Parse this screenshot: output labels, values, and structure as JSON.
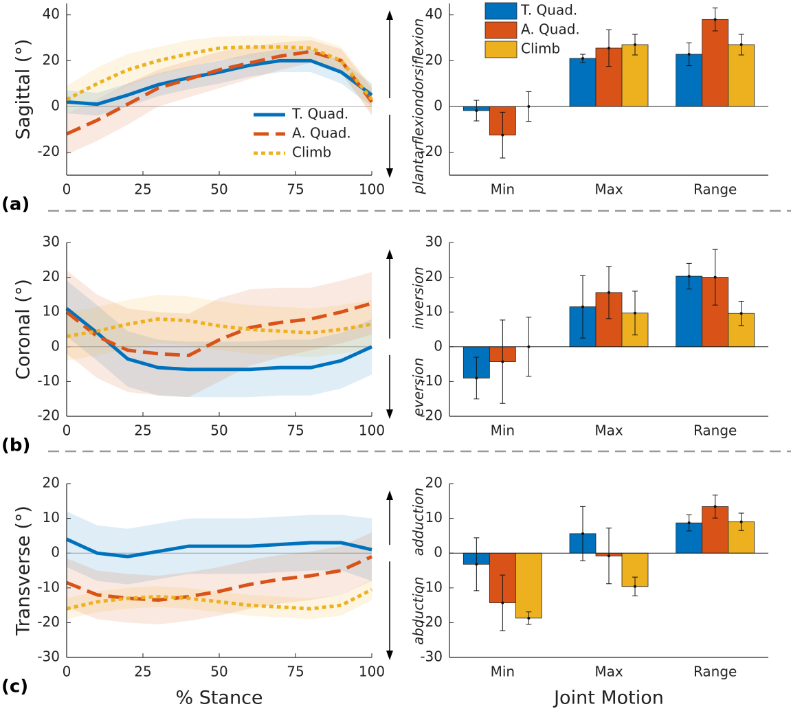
{
  "chart_data": [
    {
      "type": "line",
      "panel_label": "(a)",
      "y_label": "Sagittal (°)",
      "direction_up": "dorsiflexion",
      "direction_down": "plantarflexion",
      "x": [
        0,
        10,
        20,
        30,
        40,
        50,
        60,
        70,
        80,
        90,
        100
      ],
      "xlim": [
        0,
        100
      ],
      "xticks": [
        0,
        25,
        50,
        75,
        100
      ],
      "ylim": [
        -30,
        45
      ],
      "yticks": [
        -20,
        0,
        20,
        40
      ],
      "legend": "lower right",
      "series": [
        {
          "name": "T. Quad.",
          "color": "#0072BD",
          "style": "solid",
          "values": [
            2,
            1,
            5,
            9.5,
            12.5,
            15,
            18,
            20,
            20,
            15,
            5
          ],
          "sd": [
            5,
            5,
            5,
            5,
            5,
            5,
            5,
            5,
            5,
            5,
            5
          ]
        },
        {
          "name": "A. Quad.",
          "color": "#D95319",
          "style": "dashed",
          "values": [
            -12,
            -6,
            1,
            8,
            12,
            16,
            19,
            22,
            24,
            20,
            2
          ],
          "sd": [
            9,
            9,
            9,
            8,
            8,
            8,
            7,
            6,
            5,
            5,
            6
          ]
        },
        {
          "name": "Climb",
          "color": "#EDB120",
          "style": "dotted",
          "values": [
            3,
            10,
            16,
            20,
            23,
            25.5,
            26,
            26,
            25.5,
            20,
            3
          ],
          "sd": [
            6,
            7,
            7,
            6,
            6,
            5,
            5,
            5,
            5,
            6,
            6
          ]
        }
      ]
    },
    {
      "type": "bar",
      "categories": [
        "Min",
        "Max",
        "Range"
      ],
      "ylim": [
        -30,
        45
      ],
      "yticks": [
        -20,
        0,
        20,
        40
      ],
      "legend": "upper left",
      "series": [
        {
          "name": "T. Quad.",
          "color": "#0072BD",
          "values": [
            -1.8,
            21,
            22.8
          ],
          "errors": [
            4.5,
            1.8,
            5
          ]
        },
        {
          "name": "A. Quad.",
          "color": "#D95319",
          "values": [
            -12.5,
            25.5,
            38
          ],
          "errors": [
            10,
            8,
            5
          ]
        },
        {
          "name": "Climb",
          "color": "#EDB120",
          "values": [
            0,
            27,
            27
          ],
          "errors": [
            6.5,
            4.5,
            4.5
          ]
        }
      ]
    },
    {
      "type": "line",
      "panel_label": "(b)",
      "y_label": "Coronal (°)",
      "direction_up": "inversion",
      "direction_down": "eversion",
      "x": [
        0,
        10,
        20,
        30,
        40,
        50,
        60,
        70,
        80,
        90,
        100
      ],
      "xlim": [
        0,
        100
      ],
      "xticks": [
        0,
        25,
        50,
        75,
        100
      ],
      "ylim": [
        -20,
        30
      ],
      "yticks": [
        -20,
        -10,
        0,
        10,
        20,
        30
      ],
      "series": [
        {
          "color": "#0072BD",
          "style": "solid",
          "values": [
            11,
            4,
            -3.5,
            -6,
            -6.5,
            -6.5,
            -6.5,
            -6,
            -6,
            -4,
            0
          ],
          "sd": [
            8,
            8,
            8,
            8,
            8,
            8,
            8,
            8,
            8,
            8,
            8
          ]
        },
        {
          "color": "#D95319",
          "style": "dashed",
          "values": [
            10,
            3,
            -1,
            -2,
            -2.5,
            2,
            5.5,
            7,
            8,
            10,
            12.5
          ],
          "sd": [
            12,
            12,
            12,
            12,
            12,
            12,
            11,
            10,
            9,
            9,
            9
          ]
        },
        {
          "color": "#EDB120",
          "style": "dotted",
          "values": [
            3,
            4.5,
            6.5,
            8,
            7.5,
            6,
            5,
            4.5,
            4,
            5,
            6.5
          ],
          "sd": [
            7,
            7,
            7,
            7,
            7,
            7,
            7,
            7,
            7,
            7,
            7
          ]
        }
      ]
    },
    {
      "type": "bar",
      "categories": [
        "Min",
        "Max",
        "Range"
      ],
      "ylim": [
        -20,
        30
      ],
      "yticks": [
        -20,
        -10,
        0,
        10,
        20,
        30
      ],
      "series": [
        {
          "color": "#0072BD",
          "values": [
            -9,
            11.5,
            20.3
          ],
          "errors": [
            6,
            9,
            3.7
          ]
        },
        {
          "color": "#D95319",
          "values": [
            -4.3,
            15.6,
            20
          ],
          "errors": [
            12,
            7.5,
            8
          ]
        },
        {
          "color": "#EDB120",
          "values": [
            0,
            9.7,
            9.6
          ],
          "errors": [
            8.5,
            6.3,
            3.5
          ]
        }
      ]
    },
    {
      "type": "line",
      "panel_label": "(c)",
      "y_label": "Transverse (°)",
      "x_label": "% Stance",
      "direction_up": "adduction",
      "direction_down": "abduction",
      "x": [
        0,
        10,
        20,
        30,
        40,
        50,
        60,
        70,
        80,
        90,
        100
      ],
      "xlim": [
        0,
        100
      ],
      "xticks": [
        0,
        25,
        50,
        75,
        100
      ],
      "ylim": [
        -30,
        20
      ],
      "yticks": [
        -30,
        -20,
        -10,
        0,
        10,
        20
      ],
      "series": [
        {
          "color": "#0072BD",
          "style": "solid",
          "values": [
            4,
            0,
            -1,
            0.5,
            2,
            2,
            2,
            2.5,
            3,
            3,
            1
          ],
          "sd": [
            8,
            8,
            8,
            8,
            8,
            8,
            8,
            8,
            8,
            8,
            9
          ]
        },
        {
          "color": "#D95319",
          "style": "dashed",
          "values": [
            -8.5,
            -12,
            -13,
            -13.5,
            -12.5,
            -11,
            -9,
            -7.5,
            -6.5,
            -5,
            -1
          ],
          "sd": [
            7,
            7,
            7,
            7,
            7,
            7,
            7,
            7,
            7,
            7,
            7
          ]
        },
        {
          "color": "#EDB120",
          "style": "dotted",
          "values": [
            -16,
            -14,
            -13,
            -12.5,
            -13,
            -14,
            -15,
            -15.5,
            -16,
            -15,
            -10.5
          ],
          "sd": [
            3,
            3,
            3,
            3,
            3,
            3,
            3,
            3,
            3,
            3,
            3
          ]
        }
      ]
    },
    {
      "type": "bar",
      "x_label": "Joint Motion",
      "categories": [
        "Min",
        "Max",
        "Range"
      ],
      "ylim": [
        -30,
        20
      ],
      "yticks": [
        -30,
        -20,
        -10,
        0,
        10,
        20
      ],
      "series": [
        {
          "color": "#0072BD",
          "values": [
            -3.2,
            5.6,
            8.7
          ],
          "errors": [
            7.6,
            7.8,
            2.3
          ]
        },
        {
          "color": "#D95319",
          "values": [
            -14.3,
            -0.8,
            13.4
          ],
          "errors": [
            8,
            8,
            3.3
          ]
        },
        {
          "color": "#EDB120",
          "values": [
            -18.7,
            -9.6,
            9
          ],
          "errors": [
            1.8,
            2.7,
            2.5
          ]
        }
      ]
    }
  ]
}
